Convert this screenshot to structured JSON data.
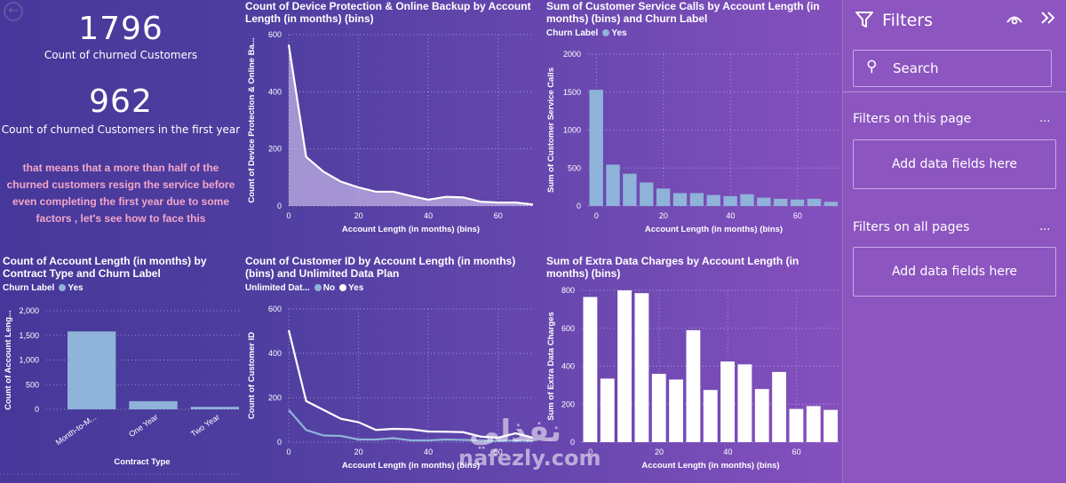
{
  "nav": {
    "back_icon": "back-arrow-icon"
  },
  "kpis": [
    {
      "value": "1796",
      "label": "Count of churned Customers"
    },
    {
      "value": "962",
      "label": "Count of churned Customers in the first year"
    }
  ],
  "note": "that means that a more than half of the churned customers resign the service before even completing the first year due to some factors , let's see how to face this",
  "colors": {
    "light_series": "#8fb3d9",
    "white_series": "#ffffff",
    "note_text": "#f4a6c8",
    "filter_pane": "#8c55c0"
  },
  "filters": {
    "title": "Filters",
    "filter_icon": "funnel-icon",
    "eye_icon": "eye-icon",
    "collapse_icon": "double-chevron-right-icon",
    "search_placeholder": "Search",
    "sections": [
      {
        "label": "Filters on this page",
        "more": "...",
        "drop": "Add data fields here"
      },
      {
        "label": "Filters on all pages",
        "more": "...",
        "drop": "Add data fields here"
      }
    ]
  },
  "watermark": {
    "arabic": "نفذلي",
    "latin": "nafezly.com"
  },
  "chart_data": [
    {
      "id": "device",
      "type": "area",
      "title": "Count of Device Protection & Online Backup by Account Length (in months) (bins)",
      "xlabel": "Account Length (in months) (bins)",
      "ylabel": "Count of Device Protection & Online Ba...",
      "x": [
        0,
        5,
        10,
        15,
        20,
        25,
        30,
        35,
        40,
        45,
        50,
        55,
        60,
        65,
        70
      ],
      "series": [
        {
          "name": "Count",
          "values": [
            565,
            172,
            120,
            85,
            65,
            50,
            50,
            35,
            22,
            32,
            30,
            15,
            12,
            12,
            5
          ]
        }
      ],
      "xlim": [
        0,
        70
      ],
      "ylim": [
        0,
        600
      ],
      "xticks": [
        "0",
        "20",
        "40",
        "60"
      ],
      "yticks": [
        "0",
        "200",
        "400",
        "600"
      ],
      "grid": true
    },
    {
      "id": "calls",
      "type": "bar",
      "title": "Sum of Customer Service Calls by Account Length (in months) (bins) and Churn Label",
      "legend_title": "Churn Label",
      "legend_position": "top-left",
      "xlabel": "Account Length (in months) (bins)",
      "ylabel": "Sum of Customer Service Calls",
      "x": [
        0,
        5,
        10,
        15,
        20,
        25,
        30,
        35,
        40,
        45,
        50,
        55,
        60,
        65,
        70
      ],
      "series": [
        {
          "name": "Yes",
          "values": [
            1530,
            545,
            425,
            310,
            230,
            170,
            170,
            145,
            130,
            155,
            110,
            95,
            85,
            95,
            55
          ]
        }
      ],
      "xlim": [
        0,
        70
      ],
      "ylim": [
        0,
        2000
      ],
      "xticks": [
        "0",
        "20",
        "40",
        "60"
      ],
      "yticks": [
        "0",
        "500",
        "1000",
        "1500",
        "2000"
      ],
      "grid": true
    },
    {
      "id": "contract",
      "type": "bar",
      "title": "Count of Account Length (in months) by Contract Type and Churn Label",
      "legend_title": "Churn Label",
      "legend_position": "top-left",
      "xlabel": "Contract Type",
      "ylabel": "Count of Account Leng...",
      "categories": [
        "Month-to-M...",
        "One Year",
        "Two Year"
      ],
      "series": [
        {
          "name": "Yes",
          "values": [
            1580,
            165,
            50
          ]
        }
      ],
      "ylim": [
        0,
        2000
      ],
      "yticks": [
        "0",
        "500",
        "1,000",
        "1,500",
        "2,000"
      ],
      "grid": true
    },
    {
      "id": "unlimited",
      "type": "line",
      "title": "Count of Customer ID by Account Length (in months) (bins) and Unlimited Data Plan",
      "legend_title": "Unlimited Dat...",
      "legend_position": "top-left",
      "xlabel": "Account Length (in months) (bins)",
      "ylabel": "Count of Customer ID",
      "x": [
        0,
        5,
        10,
        15,
        20,
        25,
        30,
        35,
        40,
        45,
        50,
        55,
        60,
        65,
        70
      ],
      "series": [
        {
          "name": "No",
          "values": [
            145,
            55,
            30,
            28,
            12,
            12,
            18,
            8,
            8,
            12,
            10,
            8,
            5,
            8,
            5
          ]
        },
        {
          "name": "Yes",
          "values": [
            505,
            185,
            145,
            105,
            90,
            55,
            60,
            58,
            48,
            47,
            45,
            25,
            20,
            40,
            20
          ]
        }
      ],
      "xlim": [
        0,
        70
      ],
      "ylim": [
        0,
        600
      ],
      "xticks": [
        "0",
        "20",
        "40",
        "60"
      ],
      "yticks": [
        "0",
        "200",
        "400",
        "600"
      ],
      "grid": true
    },
    {
      "id": "extra",
      "type": "bar",
      "title": "Sum of Extra Data Charges by Account Length (in months) (bins)",
      "xlabel": "Account Length (in months) (bins)",
      "ylabel": "Sum of Extra Data Charges",
      "x": [
        0,
        5,
        10,
        15,
        20,
        25,
        30,
        35,
        40,
        45,
        50,
        55,
        60,
        65,
        70
      ],
      "series": [
        {
          "name": "Sum",
          "values": [
            765,
            335,
            800,
            785,
            360,
            330,
            590,
            275,
            425,
            410,
            280,
            370,
            175,
            190,
            170
          ]
        }
      ],
      "xlim": [
        0,
        70
      ],
      "ylim": [
        0,
        800
      ],
      "xticks": [
        "0",
        "20",
        "40",
        "60"
      ],
      "yticks": [
        "0",
        "200",
        "400",
        "600",
        "800"
      ],
      "grid": true
    }
  ]
}
